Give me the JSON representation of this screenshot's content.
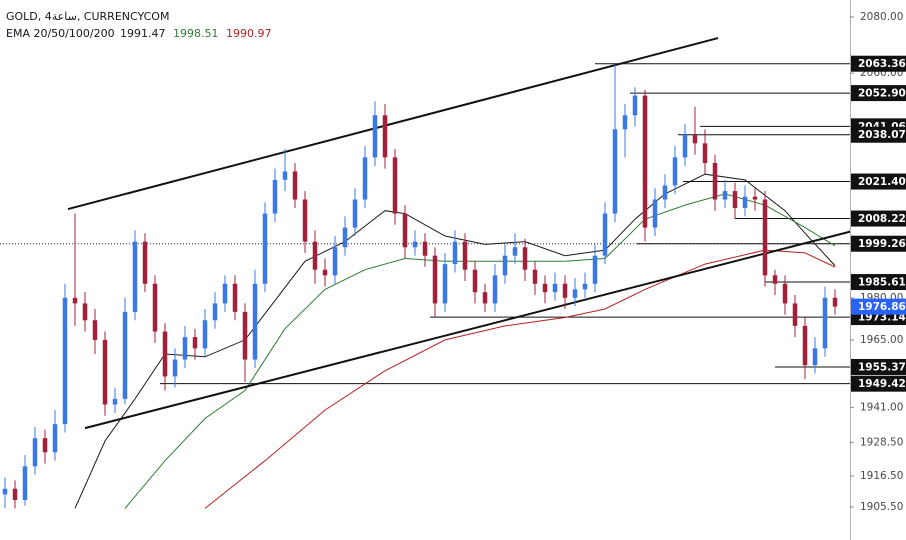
{
  "chart_data": {
    "type": "candlestick",
    "title": "GOLD, 4ساعة, CURRENCYCOM",
    "indicator_label": "EMA 20/50/100/200",
    "up_color": "#3a78e6",
    "down_color": "#a3203b",
    "ylim": [
      1893.75,
      2086.05
    ],
    "xlim": [
      -0.5,
      84.5
    ],
    "yticks": [
      {
        "value": 2080,
        "label": "2080.00"
      },
      {
        "value": 2060,
        "label": "2060.00"
      },
      {
        "value": 1980,
        "label": "1980.00"
      },
      {
        "value": 1965,
        "label": "1965.00"
      },
      {
        "value": 1941,
        "label": "1941.00"
      },
      {
        "value": 1928.5,
        "label": "1928.50"
      },
      {
        "value": 1916.5,
        "label": "1916.50"
      },
      {
        "value": 1905.5,
        "label": "1905.50"
      }
    ],
    "open": [
      1910,
      1912,
      1908,
      1920,
      1930,
      1925,
      1935,
      1980,
      1978,
      1972,
      1965,
      1942,
      1944,
      1975,
      2000,
      1985,
      1968,
      1952,
      1958,
      1966,
      1962,
      1972,
      1978,
      1985,
      1975,
      1958,
      1985,
      2010,
      2022,
      2025,
      2015,
      2000,
      1990,
      1988,
      1998,
      2005,
      2015,
      2030,
      2045,
      2030,
      2010,
      1998,
      2000,
      1995,
      1978,
      1992,
      2000,
      1990,
      1982,
      1978,
      1988,
      1995,
      1998,
      1990,
      1985,
      1982,
      1985,
      1980,
      1983,
      1985,
      1995,
      2010,
      2040,
      2045,
      2052,
      2005,
      2015,
      2020,
      2030,
      2038,
      2035,
      2028,
      2015,
      2018,
      2012,
      2016,
      2015,
      1988,
      1985,
      1978,
      1970,
      1956,
      1962,
      1980
    ],
    "high": [
      1916,
      1915,
      1924,
      1934,
      1933,
      1940,
      1985,
      2010,
      1982,
      1976,
      1968,
      1948,
      1980,
      2004,
      2003,
      1988,
      1971,
      1962,
      1970,
      1969,
      1976,
      1982,
      1988,
      1988,
      1978,
      1990,
      2014,
      2026,
      2033,
      2028,
      2018,
      2004,
      1994,
      2002,
      2009,
      2019,
      2034,
      2050,
      2049,
      2033,
      2013,
      2004,
      2003,
      1998,
      1996,
      2004,
      2003,
      1993,
      1985,
      1992,
      1999,
      2003,
      2001,
      1993,
      1988,
      1989,
      1988,
      1987,
      1989,
      1999,
      2014,
      2063,
      2049,
      2055,
      2054,
      2019,
      2024,
      2034,
      2042,
      2048,
      2040,
      2031,
      2022,
      2021,
      2020,
      2019,
      2018,
      1990,
      1988,
      1981,
      1973,
      1966,
      1984,
      1983
    ],
    "low": [
      1905,
      1905,
      1906,
      1917,
      1921,
      1922,
      1932,
      1970,
      1968,
      1960,
      1938,
      1939,
      1942,
      1972,
      1982,
      1964,
      1947,
      1948,
      1955,
      1958,
      1959,
      1969,
      1975,
      1972,
      1950,
      1955,
      1982,
      2007,
      2018,
      2012,
      1996,
      1985,
      1984,
      1985,
      1995,
      2002,
      2012,
      2027,
      2026,
      2006,
      1994,
      1995,
      1991,
      1973,
      1975,
      1989,
      1986,
      1978,
      1975,
      1975,
      1985,
      1992,
      1986,
      1981,
      1978,
      1979,
      1976,
      1977,
      1980,
      1982,
      1992,
      2007,
      2030,
      2041,
      2000,
      2002,
      2012,
      2017,
      2027,
      2031,
      2024,
      2011,
      2012,
      2008,
      2009,
      2011,
      1984,
      1981,
      1974,
      1966,
      1951,
      1953,
      1959,
      1974
    ],
    "close": [
      1912,
      1908,
      1920,
      1930,
      1925,
      1935,
      1980,
      1978,
      1972,
      1965,
      1942,
      1944,
      1975,
      2000,
      1985,
      1968,
      1952,
      1958,
      1966,
      1962,
      1972,
      1978,
      1985,
      1975,
      1958,
      1985,
      2010,
      2022,
      2025,
      2015,
      2000,
      1990,
      1988,
      1998,
      2005,
      2015,
      2030,
      2045,
      2030,
      2010,
      1998,
      2000,
      1995,
      1978,
      1992,
      2000,
      1990,
      1982,
      1978,
      1988,
      1995,
      1998,
      1990,
      1985,
      1982,
      1985,
      1980,
      1983,
      1985,
      1995,
      2010,
      2040,
      2045,
      2052,
      2005,
      2015,
      2020,
      2030,
      2038,
      2035,
      2028,
      2015,
      2018,
      2012,
      2016,
      2015,
      1988,
      1985,
      1978,
      1970,
      1956,
      1962,
      1980,
      1976.86
    ],
    "last_label": "1976.86",
    "last_color": "#2962ff",
    "series": [
      {
        "color": "#1a1a1a",
        "current": 1991.47,
        "x": [
          7,
          10,
          13,
          16,
          20,
          24,
          27,
          30,
          34,
          38,
          40,
          44,
          48,
          52,
          56,
          60,
          63,
          66,
          70,
          74,
          78,
          80,
          83
        ],
        "values": [
          1905,
          1929,
          1944,
          1960,
          1959,
          1965,
          1979,
          1993,
          2000,
          2011,
          2010,
          2002,
          1999,
          2000,
          1995,
          1997,
          2008,
          2017,
          2024,
          2022,
          2011,
          2003,
          1991.47
        ]
      },
      {
        "color": "#2e7d32",
        "current": 1998.51,
        "x": [
          12,
          16,
          20,
          24,
          28,
          32,
          36,
          40,
          44,
          50,
          56,
          60,
          64,
          68,
          72,
          76,
          80,
          83
        ],
        "values": [
          1905,
          1922,
          1937,
          1947,
          1969,
          1983,
          1990,
          1994,
          1993,
          1993,
          1993,
          1994,
          2008,
          2013,
          2017,
          2013,
          2005,
          1998.51
        ]
      },
      {
        "color": "#b22222",
        "current": 1990.97,
        "x": [
          20,
          26,
          32,
          38,
          44,
          50,
          56,
          60,
          64,
          70,
          76,
          80,
          83
        ],
        "values": [
          1905,
          1922,
          1940,
          1954,
          1965,
          1970,
          1973,
          1976,
          1983,
          1992,
          1997,
          1996,
          1990.97
        ]
      }
    ],
    "trendlines": [
      {
        "x": [
          6.3,
          71.3
        ],
        "y": [
          2011.6,
          2072.5
        ]
      },
      {
        "x": [
          8,
          85
        ],
        "y": [
          1933.6,
          2004
        ]
      }
    ],
    "levels": [
      {
        "value": 2063.36,
        "label": "2063.36",
        "from": 59
      },
      {
        "value": 2052.9,
        "label": "2052.90",
        "from": 62.5
      },
      {
        "value": 2041.06,
        "label": "2041.06",
        "from": 69.5
      },
      {
        "value": 2038.07,
        "label": "2038.07",
        "from": 67.3
      },
      {
        "value": 2021.4,
        "label": "2021.40",
        "from": 67.8
      },
      {
        "value": 2008.22,
        "label": "2008.22",
        "from": 73
      },
      {
        "value": 1999.26,
        "label": "1999.26",
        "from": 63.2,
        "dotted": true
      },
      {
        "value": 1985.61,
        "label": "1985.61",
        "from": 76
      },
      {
        "value": 1973.14,
        "label": "1973.14",
        "from": 42.5
      },
      {
        "value": 1955.37,
        "label": "1955.37",
        "from": 77
      },
      {
        "value": 1949.42,
        "label": "1949.42",
        "from": 15.5
      }
    ]
  }
}
